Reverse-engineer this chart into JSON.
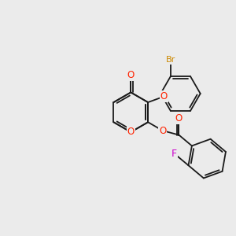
{
  "bg_color": "#ebebeb",
  "bond_color": "#1a1a1a",
  "bond_width": 1.3,
  "atom_colors": {
    "O": "#ff2200",
    "F": "#cc00cc",
    "Br": "#cc8800",
    "C": "#1a1a1a"
  },
  "font_size": 8.5,
  "fig_width": 3.0,
  "fig_height": 3.0,
  "xlim": [
    -3.5,
    3.8
  ],
  "ylim": [
    -2.2,
    2.2
  ]
}
